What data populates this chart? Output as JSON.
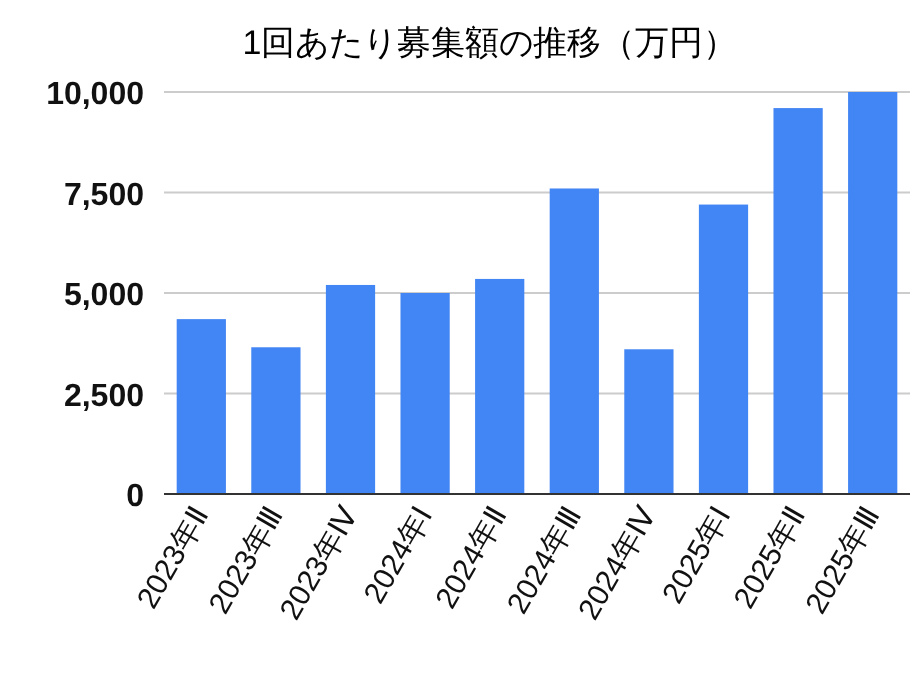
{
  "chart_data": {
    "type": "bar",
    "title": "1回あたり募集額の推移（万円）",
    "categories": [
      "2023年Ⅱ",
      "2023年Ⅲ",
      "2023年Ⅳ",
      "2024年Ⅰ",
      "2024年Ⅱ",
      "2024年Ⅲ",
      "2024年Ⅳ",
      "2025年Ⅰ",
      "2025年Ⅱ",
      "2025年Ⅲ"
    ],
    "values": [
      4350,
      3650,
      5200,
      5000,
      5350,
      7600,
      3600,
      7200,
      9600,
      10000
    ],
    "color": "#4285f4",
    "ylim": [
      0,
      10000
    ],
    "yticks": [
      {
        "value": 0,
        "label": "0"
      },
      {
        "value": 2500,
        "label": "2,500"
      },
      {
        "value": 5000,
        "label": "5,000"
      },
      {
        "value": 7500,
        "label": "7,500"
      },
      {
        "value": 10000,
        "label": "10,000"
      }
    ],
    "grid": "y"
  }
}
